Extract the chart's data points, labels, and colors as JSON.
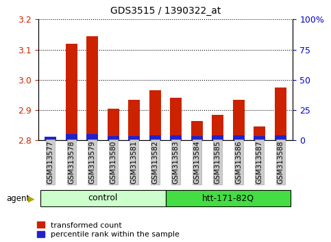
{
  "title": "GDS3515 / 1390322_at",
  "samples": [
    "GSM313577",
    "GSM313578",
    "GSM313579",
    "GSM313580",
    "GSM313581",
    "GSM313582",
    "GSM313583",
    "GSM313584",
    "GSM313585",
    "GSM313586",
    "GSM313587",
    "GSM313588"
  ],
  "red_values": [
    2.805,
    3.12,
    3.145,
    2.905,
    2.935,
    2.965,
    2.94,
    2.865,
    2.885,
    2.935,
    2.845,
    2.975
  ],
  "blue_values": [
    0.012,
    0.02,
    0.02,
    0.015,
    0.015,
    0.017,
    0.017,
    0.014,
    0.016,
    0.016,
    0.014,
    0.017
  ],
  "ymin": 2.8,
  "ymax": 3.2,
  "yticks": [
    2.8,
    2.9,
    3.0,
    3.1,
    3.2
  ],
  "right_yticks": [
    0,
    25,
    50,
    75,
    100
  ],
  "right_yticklabels": [
    "0",
    "25",
    "50",
    "75",
    "100%"
  ],
  "control_samples": 6,
  "htt_samples": 6,
  "ctrl_label": "control",
  "htt_label": "htt-171-82Q",
  "ctrl_color": "#ccffcc",
  "htt_color": "#44dd44",
  "agent_label": "agent",
  "red_color": "#cc2200",
  "blue_color": "#2222cc",
  "bar_width": 0.55,
  "background_color": "#ffffff",
  "tick_label_color_left": "#cc2200",
  "tick_label_color_right": "#0000cc",
  "grid_color": "#000000",
  "xtick_bg": "#cccccc",
  "legend_red": "transformed count",
  "legend_blue": "percentile rank within the sample"
}
